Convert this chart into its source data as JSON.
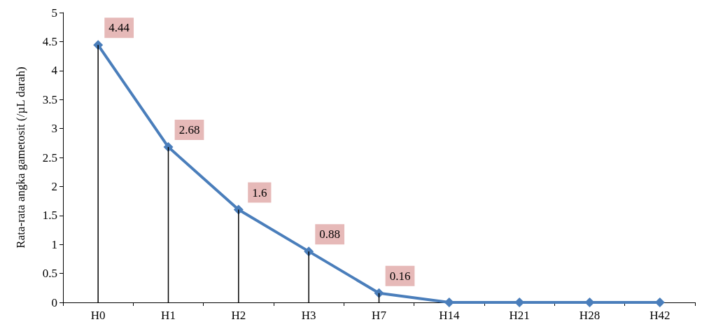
{
  "chart_data": {
    "type": "line",
    "ylabel": "Rata-rata angka gametosit (/µL darah)",
    "categories": [
      "H0",
      "H1",
      "H2",
      "H3",
      "H7",
      "H14",
      "H21",
      "H28",
      "H42"
    ],
    "series": [
      {
        "type": "bar",
        "color": "#000000",
        "values": [
          4.44,
          2.68,
          1.6,
          0.88,
          0.16,
          0,
          0,
          0,
          0
        ]
      },
      {
        "color": "#4a7ebb",
        "values": [
          4.44,
          2.68,
          1.6,
          0.88,
          0.16,
          0,
          0,
          0,
          0
        ],
        "value_labels": [
          "4.44",
          "2.68",
          "1.6",
          "0.88",
          "0.16",
          null,
          null,
          null,
          null
        ]
      }
    ],
    "ylim": [
      0,
      5
    ],
    "yticks": [
      0,
      0.5,
      1,
      1.5,
      2,
      2.5,
      3,
      3.5,
      4,
      4.5,
      5
    ],
    "grid": false,
    "marker": "diamond",
    "line_style": "solid"
  }
}
